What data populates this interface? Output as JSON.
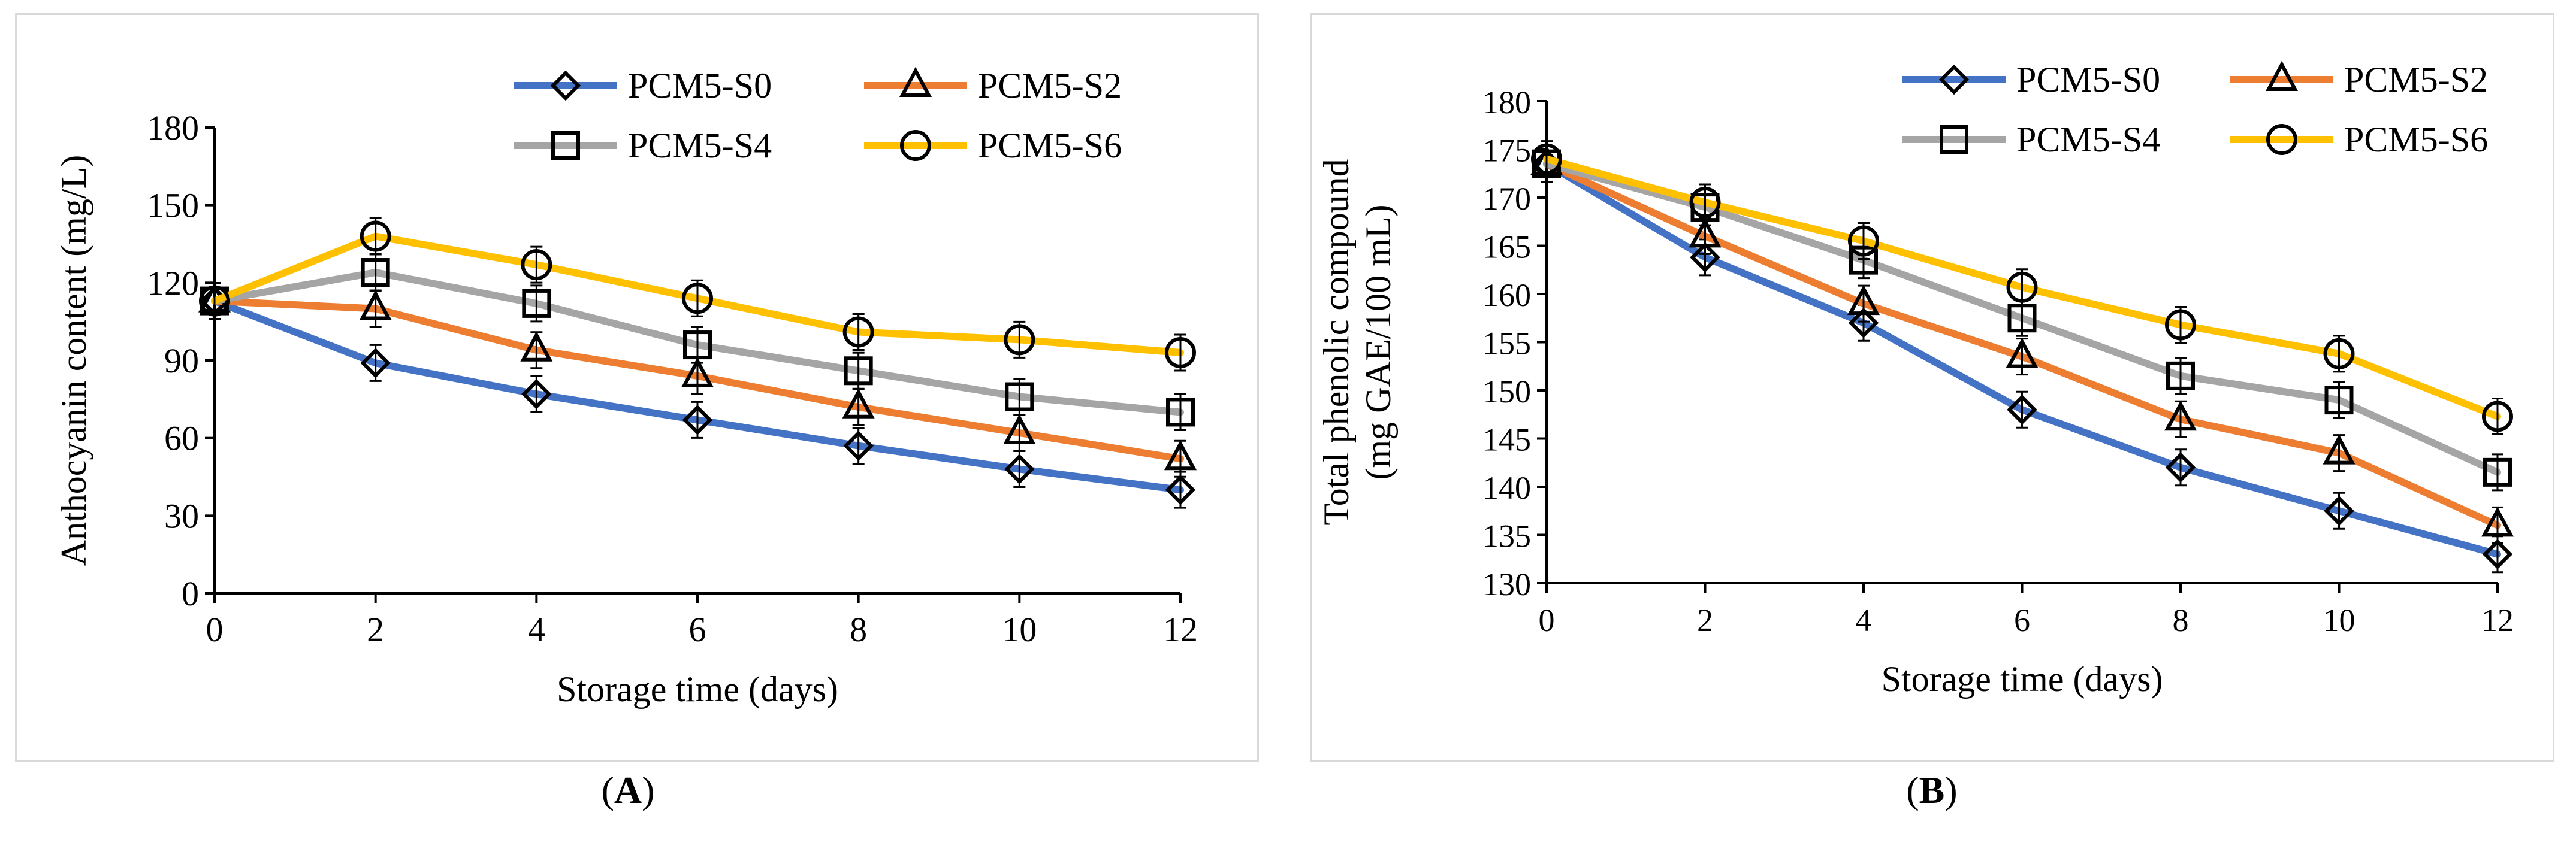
{
  "chart_data": [
    {
      "type": "line",
      "panel_label": "A",
      "xlabel": "Storage time (days)",
      "ylabel": "Anthocyanin content (mg/L)",
      "x": [
        0,
        2,
        4,
        6,
        8,
        10,
        12
      ],
      "ylim": [
        0,
        180
      ],
      "yticks": [
        0,
        30,
        60,
        90,
        120,
        150,
        180
      ],
      "xticks": [
        0,
        2,
        4,
        6,
        8,
        10,
        12
      ],
      "grid": false,
      "legend_position": "top-right",
      "series": [
        {
          "name": "PCM5-S0",
          "marker": "diamond",
          "color": "#4472C4",
          "values": [
            113,
            89,
            77,
            67,
            57,
            48,
            40
          ]
        },
        {
          "name": "PCM5-S2",
          "marker": "triangle",
          "color": "#ED7D31",
          "values": [
            113,
            110,
            94,
            84,
            72,
            62,
            52
          ]
        },
        {
          "name": "PCM5-S4",
          "marker": "square",
          "color": "#A5A5A5",
          "values": [
            113,
            124,
            112,
            96,
            86,
            76,
            70
          ]
        },
        {
          "name": "PCM5-S6",
          "marker": "circle",
          "color": "#FFC000",
          "values": [
            113,
            138,
            127,
            114,
            101,
            98,
            93
          ]
        }
      ]
    },
    {
      "type": "line",
      "panel_label": "B",
      "xlabel": "Storage time (days)",
      "ylabel": "Total phenolic compound",
      "ylabel2": "(mg GAE/100 mL)",
      "x": [
        0,
        2,
        4,
        6,
        8,
        10,
        12
      ],
      "ylim": [
        130,
        180
      ],
      "yticks": [
        130,
        135,
        140,
        145,
        150,
        155,
        160,
        165,
        170,
        175,
        180
      ],
      "xticks": [
        0,
        2,
        4,
        6,
        8,
        10,
        12
      ],
      "grid": false,
      "legend_position": "top-right",
      "series": [
        {
          "name": "PCM5-S0",
          "marker": "diamond",
          "color": "#4472C4",
          "values": [
            173.5,
            163.8,
            157,
            148,
            142,
            137.5,
            133
          ]
        },
        {
          "name": "PCM5-S2",
          "marker": "triangle",
          "color": "#ED7D31",
          "values": [
            173.5,
            166,
            159,
            153.5,
            147,
            143.5,
            136
          ]
        },
        {
          "name": "PCM5-S4",
          "marker": "square",
          "color": "#A5A5A5",
          "values": [
            173.5,
            169,
            163.5,
            157.5,
            151.5,
            149,
            141.5
          ]
        },
        {
          "name": "PCM5-S6",
          "marker": "circle",
          "color": "#FFC000",
          "values": [
            174,
            169.5,
            165.5,
            160.7,
            156.8,
            153.8,
            147.3
          ]
        }
      ]
    }
  ]
}
